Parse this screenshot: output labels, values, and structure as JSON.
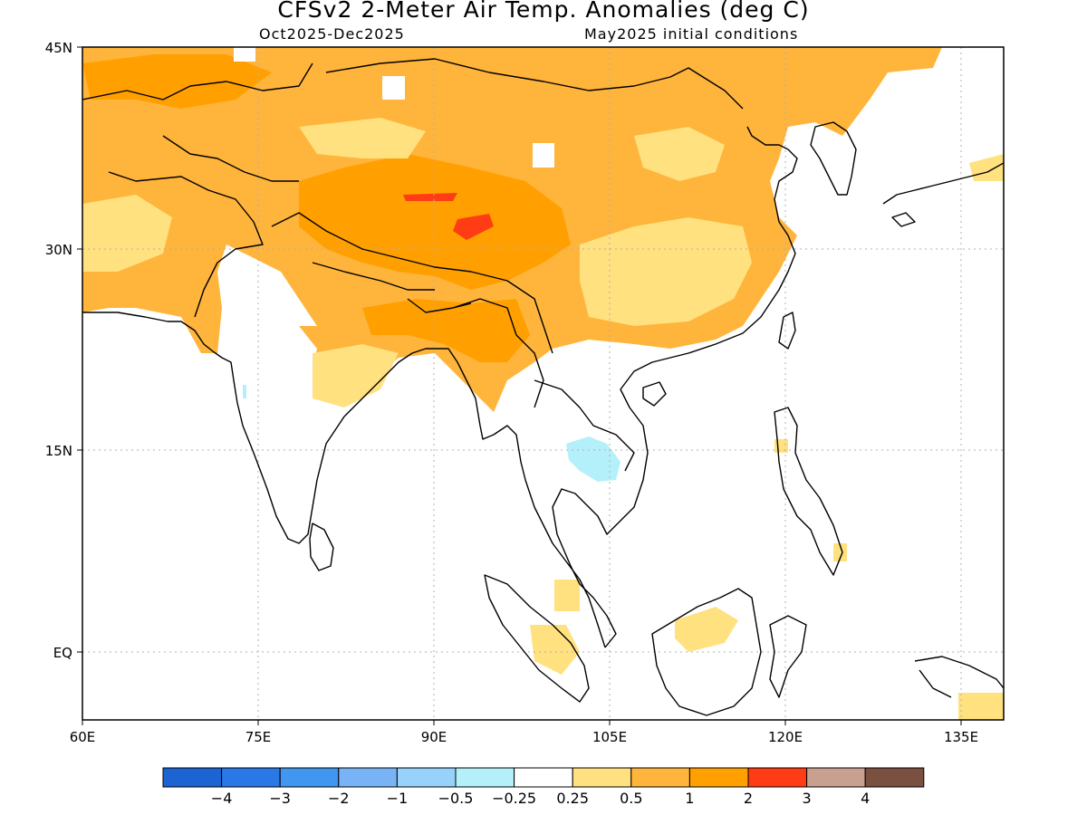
{
  "title": "CFSv2 2-Meter Air Temp. Anomalies (deg C)",
  "subtitle_left": "Oct2025-Dec2025",
  "subtitle_right": "May2025 initial conditions",
  "axes": {
    "x_ticks": [
      "60E",
      "75E",
      "90E",
      "105E",
      "120E",
      "135E"
    ],
    "y_ticks": [
      "45N",
      "30N",
      "15N",
      "EQ"
    ]
  },
  "colorbar": {
    "colors": [
      "#1c64d2",
      "#2a78e6",
      "#4196f0",
      "#78b4f5",
      "#96d2fa",
      "#b4f0fa",
      "#ffffff",
      "#ffe180",
      "#ffb43c",
      "#ffa000",
      "#ff3c14",
      "#c8a090",
      "#7a5040"
    ],
    "labels": [
      "-4",
      "-3",
      "-2",
      "-1",
      "-0.5",
      "-0.25",
      "0.25",
      "0.5",
      "1",
      "2",
      "3",
      "4"
    ]
  },
  "colors": {
    "anom_05_1": "#ffb43c",
    "anom_025_05": "#ffe180",
    "anom_1_2": "#ffa000",
    "anom_2_3": "#ff3c14",
    "anom_neg": "#b4f0fa"
  }
}
